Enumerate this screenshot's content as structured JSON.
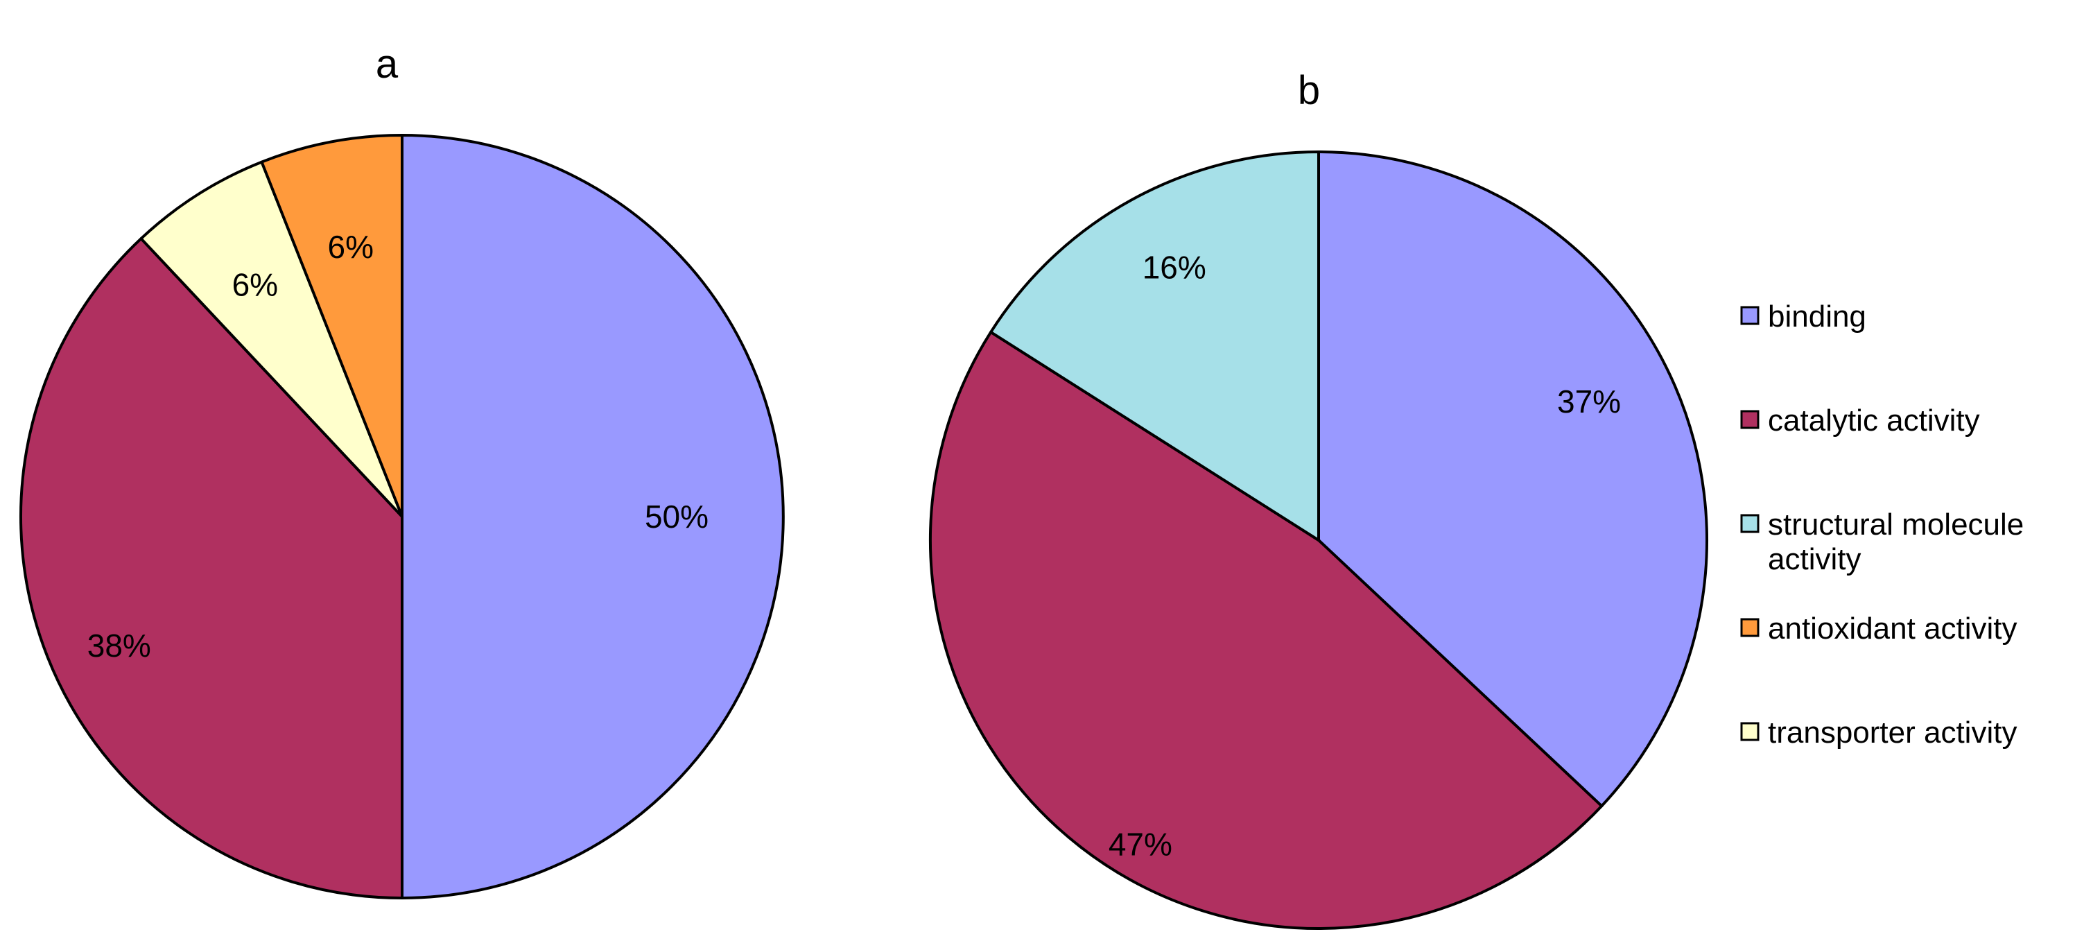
{
  "chart_data": [
    {
      "type": "pie",
      "id": "a",
      "title": "a",
      "slices": [
        {
          "category": "binding",
          "value": 50,
          "label": "50%"
        },
        {
          "category": "catalytic activity",
          "value": 38,
          "label": "38%"
        },
        {
          "category": "transporter activity",
          "value": 6,
          "label": "6%"
        },
        {
          "category": "antioxidant activity",
          "value": 6,
          "label": "6%"
        }
      ],
      "start": "12 o'clock",
      "direction": "clockwise"
    },
    {
      "type": "pie",
      "id": "b",
      "title": "b",
      "slices": [
        {
          "category": "binding",
          "value": 37,
          "label": "37%"
        },
        {
          "category": "catalytic activity",
          "value": 47,
          "label": "47%"
        },
        {
          "category": "structural molecule activity",
          "value": 16,
          "label": "16%"
        }
      ],
      "start": "12 o'clock",
      "direction": "clockwise"
    }
  ],
  "legend": {
    "placement": "right",
    "items": [
      {
        "category": "binding",
        "lines": [
          "binding"
        ]
      },
      {
        "category": "catalytic activity",
        "lines": [
          "catalytic activity"
        ]
      },
      {
        "category": "structural molecule activity",
        "lines": [
          "structural molecule",
          "activity"
        ]
      },
      {
        "category": "antioxidant activity",
        "lines": [
          "antioxidant activity"
        ]
      },
      {
        "category": "transporter activity",
        "lines": [
          "transporter activity"
        ]
      }
    ]
  },
  "colors": {
    "binding": "#9999FF",
    "catalytic activity": "#B03060",
    "structural molecule activity": "#A6E0E8",
    "antioxidant activity": "#FF9A3C",
    "transporter activity": "#FFFFCC"
  }
}
